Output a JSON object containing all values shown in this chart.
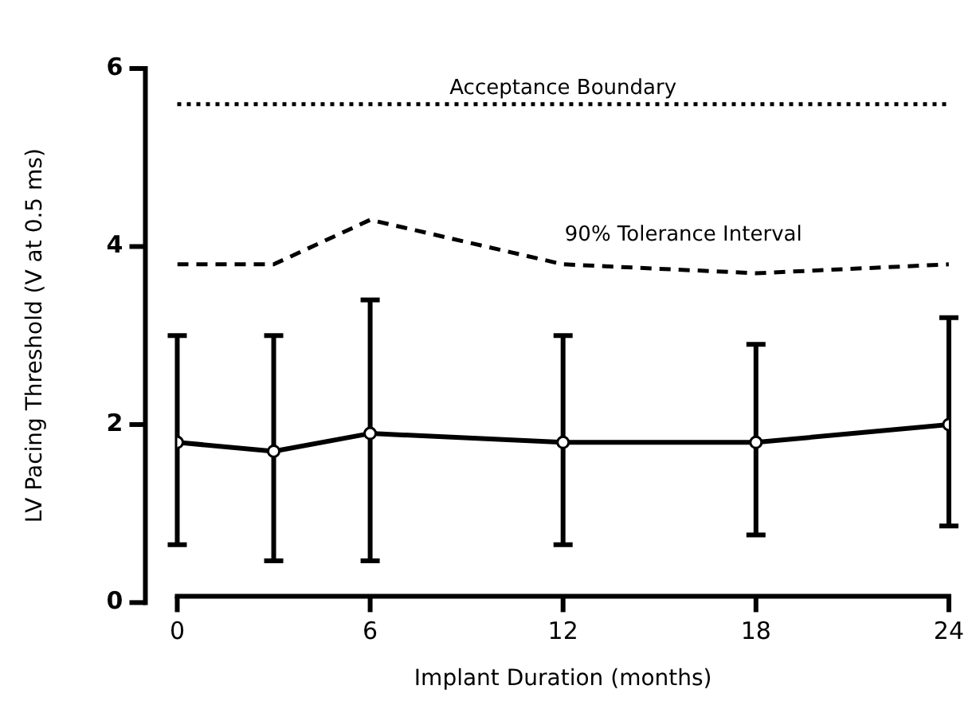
{
  "chart_data": {
    "type": "line",
    "xlabel": "Implant Duration (months)",
    "ylabel": "LV Pacing Threshold (V at 0.5 ms)",
    "x": [
      0,
      3,
      6,
      12,
      18,
      24
    ],
    "xlim": [
      0,
      24
    ],
    "xticks": [
      0,
      6,
      12,
      18,
      24
    ],
    "ylim": [
      0,
      6
    ],
    "yticks": [
      0,
      2,
      4,
      6
    ],
    "grid": false,
    "marker": "circle",
    "line_style": "solid",
    "series": [
      {
        "color": "#000000",
        "values": [
          1.8,
          1.7,
          1.9,
          1.8,
          1.8,
          2.0
        ],
        "errors": [
          [
            0.65,
            3.0
          ],
          [
            0.47,
            3.0
          ],
          [
            0.47,
            3.4
          ],
          [
            0.65,
            3.0
          ],
          [
            0.76,
            2.9
          ],
          [
            0.86,
            3.2
          ]
        ]
      },
      {
        "name": "90% Tolerance Interval",
        "color": "#000000",
        "line_style": "dashed",
        "marker": "none",
        "values": [
          3.8,
          3.8,
          4.3,
          3.8,
          3.7,
          3.8
        ]
      }
    ],
    "ref_lines": [
      {
        "axis": "y",
        "value": 5.6,
        "label": "Acceptance Boundary",
        "color": "#000000",
        "line_style": "dotted"
      }
    ]
  }
}
